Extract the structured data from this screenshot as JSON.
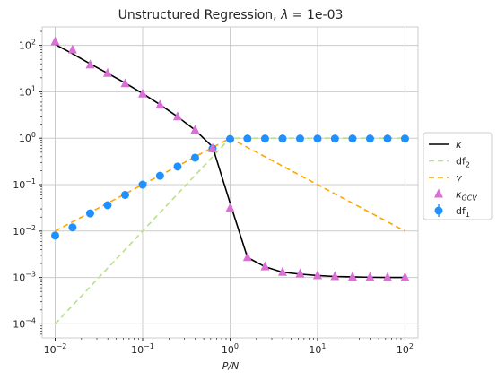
{
  "chart_data": {
    "type": "line",
    "title": "Unstructured Regression, λ = 1e-03",
    "title_prefix": "Unstructured Regression, ",
    "title_lambda": "λ",
    "title_value": " = 1e-03",
    "xlabel": "P/N",
    "ylabel": "",
    "xscale": "log",
    "yscale": "log",
    "xlim": [
      0.0071,
      141
    ],
    "ylim": [
      5e-05,
      250
    ],
    "grid": true,
    "legend_position": "center-right outside",
    "xticks": [
      {
        "base": "10",
        "exp": "−2",
        "value": 0.01
      },
      {
        "base": "10",
        "exp": "−1",
        "value": 0.1
      },
      {
        "base": "10",
        "exp": "0",
        "value": 1
      },
      {
        "base": "10",
        "exp": "1",
        "value": 10
      },
      {
        "base": "10",
        "exp": "2",
        "value": 100
      }
    ],
    "yticks": [
      {
        "base": "10",
        "exp": "−4",
        "value": 0.0001
      },
      {
        "base": "10",
        "exp": "−3",
        "value": 0.001
      },
      {
        "base": "10",
        "exp": "−2",
        "value": 0.01
      },
      {
        "base": "10",
        "exp": "−1",
        "value": 0.1
      },
      {
        "base": "10",
        "exp": "0",
        "value": 1
      },
      {
        "base": "10",
        "exp": "1",
        "value": 10
      },
      {
        "base": "10",
        "exp": "2",
        "value": 100
      }
    ],
    "series": [
      {
        "id": "kappa",
        "label_main": "κ",
        "label_sub": "",
        "style": "line",
        "color": "#000000",
        "dash": "",
        "x": [
          0.01,
          0.0158,
          0.0251,
          0.0398,
          0.0631,
          0.1,
          0.158,
          0.251,
          0.398,
          0.631,
          1.0,
          1.58,
          2.51,
          3.98,
          6.31,
          10,
          15.8,
          25.1,
          39.8,
          63.1,
          100
        ],
        "y": [
          105,
          66,
          40,
          25,
          15.5,
          9.2,
          5.3,
          2.9,
          1.5,
          0.65,
          0.04,
          0.0027,
          0.0017,
          0.0013,
          0.00118,
          0.0011,
          0.00105,
          0.00103,
          0.00101,
          0.001,
          0.001
        ]
      },
      {
        "id": "df2",
        "label_main": "df",
        "label_sub": "2",
        "style": "line",
        "color": "#b8e08a",
        "dash": "6,4",
        "x": [
          0.01,
          1.0,
          100
        ],
        "y": [
          0.0001,
          1.0,
          1.0
        ]
      },
      {
        "id": "gamma",
        "label_main": "γ",
        "label_sub": "",
        "style": "line",
        "color": "#ffa500",
        "dash": "6,4",
        "x": [
          0.01,
          1.0,
          100
        ],
        "y": [
          0.01,
          1.0,
          0.01
        ]
      },
      {
        "id": "kappa_gcv",
        "label_main": "κ",
        "label_sub": "GCV",
        "style": "triangle",
        "color": "#da70d6",
        "dash": "",
        "x": [
          0.01,
          0.0158,
          0.0251,
          0.0398,
          0.0631,
          0.1,
          0.158,
          0.251,
          0.398,
          0.631,
          1.0,
          1.58,
          2.51,
          3.98,
          6.31,
          10,
          15.8,
          25.1,
          39.8,
          63.1,
          100
        ],
        "y": [
          120,
          80,
          38,
          25,
          15,
          9,
          5.2,
          2.9,
          1.5,
          0.6,
          0.031,
          0.0027,
          0.0017,
          0.0013,
          0.0012,
          0.0011,
          0.00105,
          0.00103,
          0.00101,
          0.001,
          0.001
        ]
      },
      {
        "id": "df1",
        "label_main": "df",
        "label_sub": "1",
        "style": "circle",
        "color": "#1e90ff",
        "dash": "",
        "x": [
          0.01,
          0.0158,
          0.0251,
          0.0398,
          0.0631,
          0.1,
          0.158,
          0.251,
          0.398,
          0.631,
          1.0,
          1.58,
          2.51,
          3.98,
          6.31,
          10,
          15.8,
          25.1,
          39.8,
          63.1,
          100
        ],
        "y": [
          0.008,
          0.012,
          0.024,
          0.036,
          0.06,
          0.1,
          0.155,
          0.245,
          0.38,
          0.6,
          0.96,
          0.98,
          0.98,
          0.98,
          0.98,
          0.98,
          0.98,
          0.98,
          0.98,
          0.98,
          0.98
        ]
      }
    ]
  }
}
